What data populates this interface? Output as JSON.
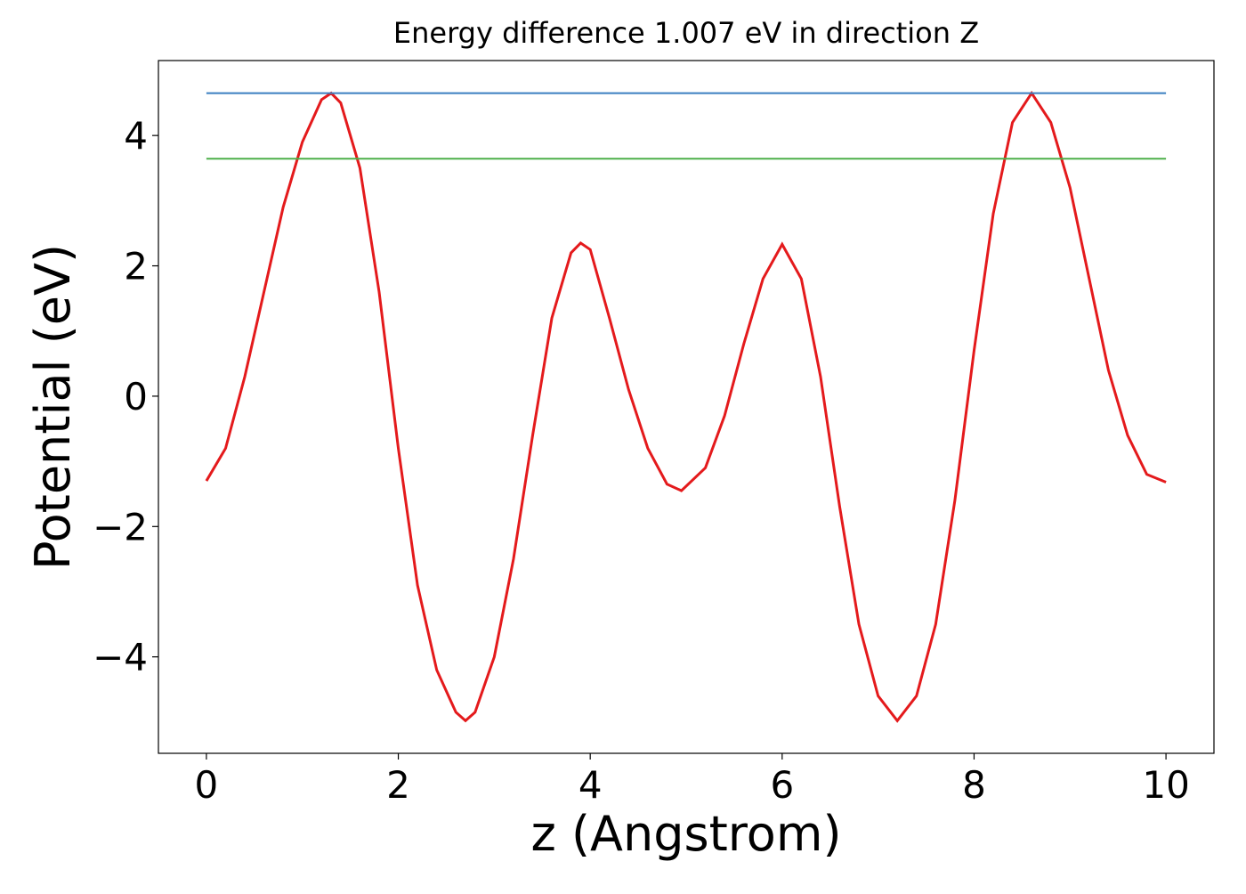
{
  "chart_data": {
    "type": "line",
    "title": "Energy difference 1.007 eV in direction Z",
    "xlabel": "z (Angstrom)",
    "ylabel": "Potential (eV)",
    "xlim": [
      -0.5,
      10.5
    ],
    "ylim": [
      -5.48,
      5.15
    ],
    "xticks": [
      0,
      2,
      4,
      6,
      8,
      10
    ],
    "yticks": [
      {
        "value": -4,
        "label": "−4"
      },
      {
        "value": -2,
        "label": "−2"
      },
      0,
      2,
      4
    ],
    "grid": false,
    "series": [
      {
        "color": "#e41a1c",
        "x": [
          0,
          0.2,
          0.4,
          0.6,
          0.8,
          1.0,
          1.2,
          1.3,
          1.4,
          1.6,
          1.8,
          2.0,
          2.2,
          2.4,
          2.6,
          2.7,
          2.8,
          3.0,
          3.2,
          3.4,
          3.6,
          3.8,
          3.9,
          4.0,
          4.2,
          4.4,
          4.6,
          4.8,
          4.95,
          5.2,
          5.4,
          5.6,
          5.8,
          6.0,
          6.2,
          6.4,
          6.6,
          6.8,
          7.0,
          7.2,
          7.4,
          7.6,
          7.8,
          8.0,
          8.2,
          8.4,
          8.6,
          8.8,
          9.0,
          9.2,
          9.4,
          9.6,
          9.8,
          10.0
        ],
        "values": [
          -1.3,
          -0.8,
          0.3,
          1.6,
          2.9,
          3.9,
          4.55,
          4.65,
          4.5,
          3.5,
          1.6,
          -0.8,
          -2.9,
          -4.2,
          -4.85,
          -4.98,
          -4.85,
          -4.0,
          -2.5,
          -0.6,
          1.2,
          2.2,
          2.35,
          2.25,
          1.2,
          0.1,
          -0.8,
          -1.35,
          -1.45,
          -1.1,
          -0.3,
          0.8,
          1.8,
          2.33,
          1.8,
          0.3,
          -1.7,
          -3.5,
          -4.6,
          -4.98,
          -4.6,
          -3.5,
          -1.6,
          0.7,
          2.8,
          4.2,
          4.65,
          4.2,
          3.2,
          1.8,
          0.4,
          -0.6,
          -1.2,
          -1.32
        ]
      },
      {
        "color": "#3a7fc0",
        "x": [
          0,
          10
        ],
        "values": [
          4.65,
          4.65
        ]
      },
      {
        "color": "#4daf4a",
        "x": [
          0,
          10
        ],
        "values": [
          3.643,
          3.643
        ]
      }
    ]
  }
}
